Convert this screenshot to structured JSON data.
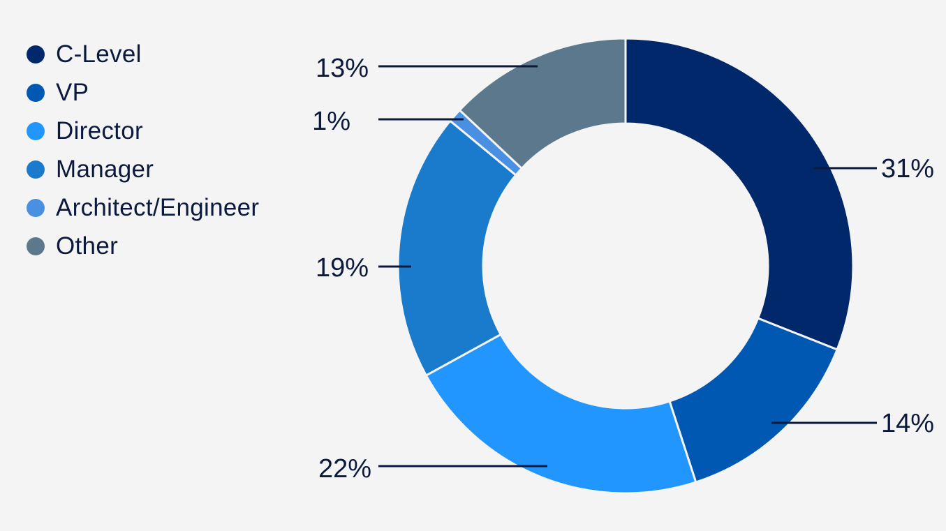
{
  "chart_data": {
    "type": "pie",
    "title": "",
    "legend_position": "top-left",
    "slices": [
      {
        "name": "C-Level",
        "value": 31,
        "label": "31%",
        "color": "#00286a"
      },
      {
        "name": "VP",
        "value": 14,
        "label": "14%",
        "color": "#0058b3"
      },
      {
        "name": "Director",
        "value": 22,
        "label": "22%",
        "color": "#2196ff"
      },
      {
        "name": "Manager",
        "value": 19,
        "label": "19%",
        "color": "#1a7bcc"
      },
      {
        "name": "Architect/Engineer",
        "value": 1,
        "label": "1%",
        "color": "#4a90e2"
      },
      {
        "name": "Other",
        "value": 13,
        "label": "13%",
        "color": "#5b788c"
      }
    ]
  }
}
